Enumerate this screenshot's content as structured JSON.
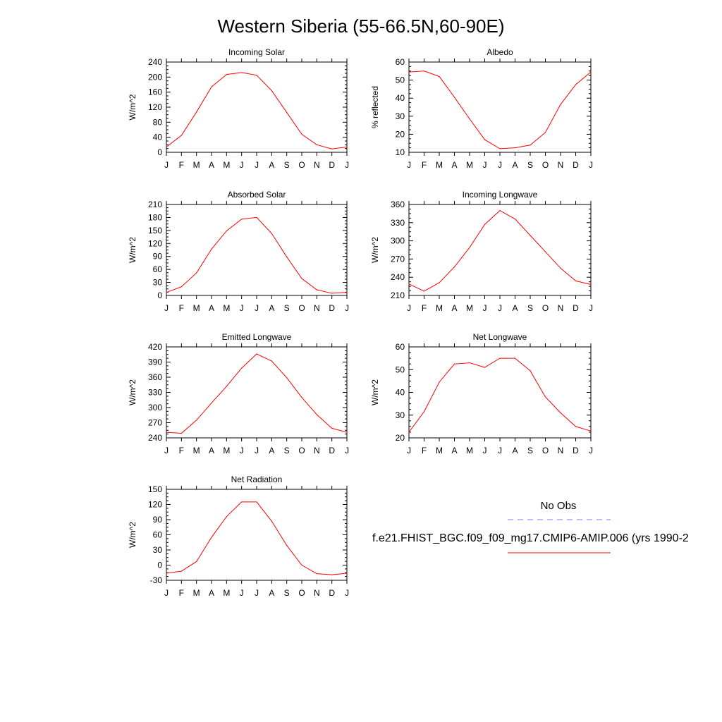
{
  "figure": {
    "title": "Western Siberia (55-66.5N,60-90E)",
    "months": [
      "J",
      "F",
      "M",
      "A",
      "M",
      "J",
      "J",
      "A",
      "S",
      "O",
      "N",
      "D",
      "J"
    ]
  },
  "legend": {
    "entries": [
      {
        "label": "No Obs",
        "color": "#7f7fff",
        "style": "dashed"
      },
      {
        "label": "f.e21.FHIST_BGC.f09_f09_mg17.CMIP6-AMIP.006 (yrs 1990-2",
        "color": "#ff0000",
        "style": "solid"
      }
    ]
  },
  "chart_data": [
    {
      "type": "line",
      "title": "Incoming Solar",
      "ylabel": "W/m^2",
      "ylim": [
        0,
        240
      ],
      "yticks": [
        0,
        40,
        80,
        120,
        160,
        200,
        240
      ],
      "ytick_labels": [
        "0",
        "40",
        "80",
        "120",
        "160",
        "200",
        "240"
      ],
      "categories": [
        "J",
        "F",
        "M",
        "A",
        "M",
        "J",
        "J",
        "A",
        "S",
        "O",
        "N",
        "D",
        "J"
      ],
      "series": [
        {
          "color": "#ff0000",
          "values": [
            14,
            45,
            107,
            174,
            207,
            212,
            205,
            164,
            106,
            48,
            20,
            9,
            14
          ]
        }
      ]
    },
    {
      "type": "line",
      "title": "Albedo",
      "ylabel": "% reflected",
      "ylim": [
        10,
        60
      ],
      "yticks": [
        10,
        20,
        30,
        40,
        50,
        60
      ],
      "ytick_labels": [
        "10",
        "20",
        "30",
        "40",
        "50",
        "60"
      ],
      "categories": [
        "J",
        "F",
        "M",
        "A",
        "M",
        "J",
        "J",
        "A",
        "S",
        "O",
        "N",
        "D",
        "J"
      ],
      "series": [
        {
          "color": "#ff0000",
          "values": [
            54.5,
            55,
            52,
            40.5,
            28.5,
            17,
            12,
            12.5,
            14,
            21,
            36.5,
            47.5,
            54.5
          ]
        }
      ]
    },
    {
      "type": "line",
      "title": "Absorbed Solar",
      "ylabel": "W/m^2",
      "ylim": [
        0,
        210
      ],
      "yticks": [
        0,
        30,
        60,
        90,
        120,
        150,
        180,
        210
      ],
      "ytick_labels": [
        "0",
        "30",
        "60",
        "90",
        "120",
        "150",
        "180",
        "210"
      ],
      "categories": [
        "J",
        "F",
        "M",
        "A",
        "M",
        "J",
        "J",
        "A",
        "S",
        "O",
        "N",
        "D",
        "J"
      ],
      "series": [
        {
          "color": "#ff0000",
          "values": [
            7,
            20,
            52,
            107,
            149,
            176,
            180,
            143,
            89,
            39,
            13,
            5,
            7
          ]
        }
      ]
    },
    {
      "type": "line",
      "title": "Incoming Longwave",
      "ylabel": "W/m^2",
      "ylim": [
        210,
        360
      ],
      "yticks": [
        210,
        240,
        270,
        300,
        330,
        360
      ],
      "ytick_labels": [
        "210",
        "240",
        "270",
        "300",
        "330",
        "360"
      ],
      "categories": [
        "J",
        "F",
        "M",
        "A",
        "M",
        "J",
        "J",
        "A",
        "S",
        "O",
        "N",
        "D",
        "J"
      ],
      "series": [
        {
          "color": "#ff0000",
          "values": [
            229,
            217,
            231,
            257,
            289,
            327,
            350,
            336,
            309,
            282,
            255,
            234,
            228
          ]
        }
      ]
    },
    {
      "type": "line",
      "title": "Emitted Longwave",
      "ylabel": "W/m^2",
      "ylim": [
        240,
        420
      ],
      "yticks": [
        240,
        270,
        300,
        330,
        360,
        390,
        420
      ],
      "ytick_labels": [
        "240",
        "270",
        "300",
        "330",
        "360",
        "390",
        "420"
      ],
      "categories": [
        "J",
        "F",
        "M",
        "A",
        "M",
        "J",
        "J",
        "A",
        "S",
        "O",
        "N",
        "D",
        "J"
      ],
      "series": [
        {
          "color": "#ff0000",
          "values": [
            251,
            249,
            275,
            309,
            342,
            378,
            406,
            392,
            359,
            320,
            286,
            259,
            251
          ]
        }
      ]
    },
    {
      "type": "line",
      "title": "Net Longwave",
      "ylabel": "W/m^2",
      "ylim": [
        20,
        60
      ],
      "yticks": [
        20,
        30,
        40,
        50,
        60
      ],
      "ytick_labels": [
        "20",
        "30",
        "40",
        "50",
        "60"
      ],
      "categories": [
        "J",
        "F",
        "M",
        "A",
        "M",
        "J",
        "J",
        "A",
        "S",
        "O",
        "N",
        "D",
        "J"
      ],
      "series": [
        {
          "color": "#ff0000",
          "values": [
            22.5,
            31.5,
            44.5,
            52.5,
            53,
            51,
            55,
            55,
            49.5,
            38,
            31,
            25,
            23
          ]
        }
      ]
    },
    {
      "type": "line",
      "title": "Net Radiation",
      "ylabel": "W/m^2",
      "ylim": [
        -30,
        150
      ],
      "yticks": [
        -30,
        0,
        30,
        60,
        90,
        120,
        150
      ],
      "ytick_labels": [
        "-30",
        "0",
        "30",
        "60",
        "90",
        "120",
        "150"
      ],
      "categories": [
        "J",
        "F",
        "M",
        "A",
        "M",
        "J",
        "J",
        "A",
        "S",
        "O",
        "N",
        "D",
        "J"
      ],
      "series": [
        {
          "color": "#ff0000",
          "values": [
            -16,
            -12,
            7,
            55,
            96,
            125,
            125,
            87,
            39,
            0,
            -17,
            -19,
            -16
          ]
        }
      ]
    }
  ]
}
